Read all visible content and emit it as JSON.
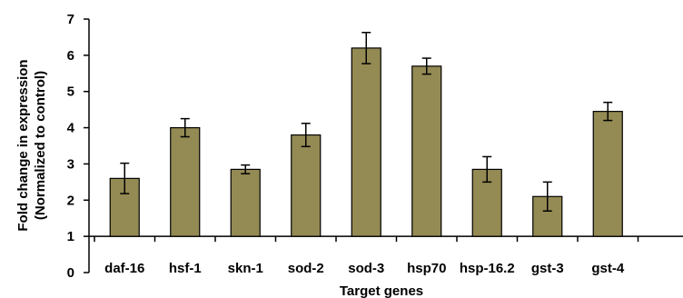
{
  "chart_data": {
    "type": "bar",
    "title": "",
    "xlabel": "Target genes",
    "ylabel_lines": [
      "Fold change in expression",
      "(Normalized to control)"
    ],
    "categories": [
      "daf-16",
      "hsf-1",
      "skn-1",
      "sod-2",
      "sod-3",
      "hsp70",
      "hsp-16.2",
      "gst-3",
      "gst-4"
    ],
    "values": [
      2.6,
      4.0,
      2.85,
      3.8,
      6.2,
      5.7,
      2.85,
      2.1,
      4.45
    ],
    "errors": [
      0.42,
      0.25,
      0.12,
      0.32,
      0.43,
      0.22,
      0.35,
      0.4,
      0.25
    ],
    "ylim": [
      0,
      7
    ],
    "yticks": [
      0,
      1,
      2,
      3,
      4,
      5,
      6,
      7
    ],
    "x_axis_crosses_at": 1,
    "grid": false,
    "legend": "none",
    "colors": {
      "bar_fill": "#948A54",
      "bar_stroke": "#000000",
      "axis": "#000000"
    }
  }
}
